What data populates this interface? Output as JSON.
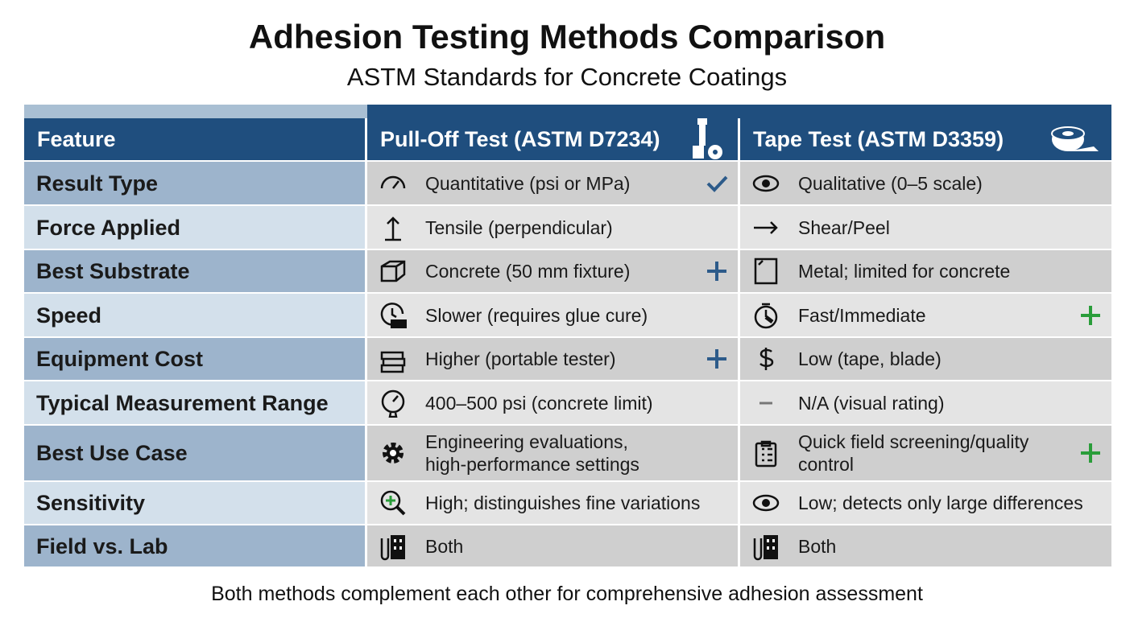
{
  "header": {
    "title": "Adhesion Testing Methods Comparison",
    "subtitle": "ASTM Standards for Concrete Coatings"
  },
  "table": {
    "columns": [
      "Feature",
      "Pull-Off Test (ASTM D7234)",
      "Tape Test (ASTM D3359)"
    ],
    "rows": [
      [
        "Result Type",
        "Quantitative (psi or MPa)",
        "Qualitative (0–5 scale)"
      ],
      [
        "Force Applied",
        "Tensile (perpendicular)",
        "Shear/Peel"
      ],
      [
        "Best Substrate",
        "Concrete (50 mm fixture)",
        "Metal; limited for concrete"
      ],
      [
        "Speed",
        "Slower (requires glue cure)",
        "Fast/Immediate"
      ],
      [
        "Equipment Cost",
        "Higher (portable tester)",
        "Low (tape, blade)"
      ],
      [
        "Typical Measurement Range",
        "400–500 psi (concrete limit)",
        "N/A (visual rating)"
      ],
      [
        "Best Use Case",
        [
          "Engineering evaluations,",
          "high-performance settings"
        ],
        [
          "Quick field screening/quality",
          "control"
        ]
      ],
      [
        "Sensitivity",
        "High; distinguishes fine variations",
        "Low; detects only large differences"
      ],
      [
        "Field vs. Lab",
        "Both",
        "Both"
      ]
    ]
  },
  "footer": {
    "note": "Both methods complement each other for comprehensive adhesion assessment"
  }
}
